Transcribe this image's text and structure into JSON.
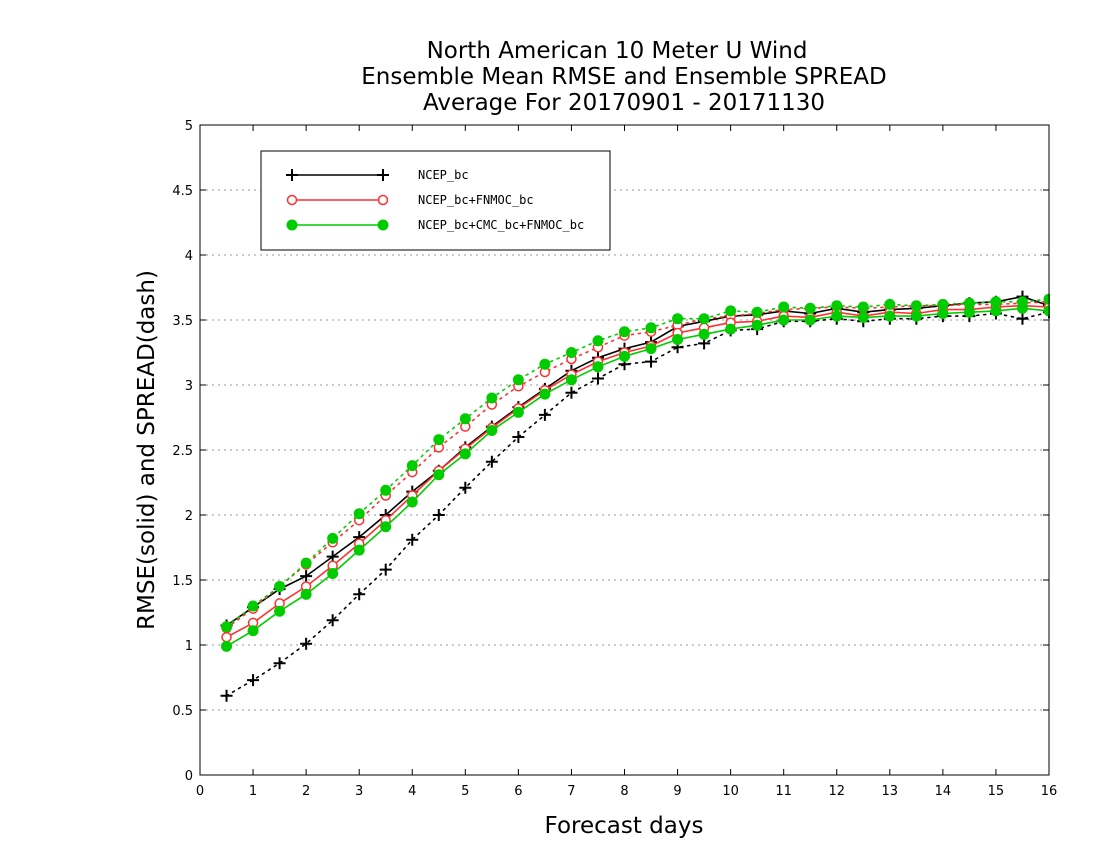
{
  "chart_data": {
    "type": "line",
    "title_lines": [
      "North American 10 Meter U Wind",
      "Ensemble Mean RMSE and Ensemble SPREAD",
      "Average For 20170901 - 20171130"
    ],
    "xlabel": "Forecast days",
    "ylabel": "RMSE(solid) and SPREAD(dash)",
    "xlim": [
      0,
      16
    ],
    "ylim": [
      0,
      5
    ],
    "xticks": [
      "0",
      "1",
      "2",
      "3",
      "4",
      "5",
      "6",
      "7",
      "8",
      "9",
      "10",
      "11",
      "12",
      "13",
      "14",
      "15",
      "16"
    ],
    "yticks": [
      "0",
      "0.5",
      "1",
      "1.5",
      "2",
      "2.5",
      "3",
      "3.5",
      "4",
      "4.5",
      "5"
    ],
    "grid": true,
    "legend_position": "top-left",
    "x": [
      0.5,
      1,
      1.5,
      2,
      2.5,
      3,
      3.5,
      4,
      4.5,
      5,
      5.5,
      6,
      6.5,
      7,
      7.5,
      8,
      8.5,
      9,
      9.5,
      10,
      10.5,
      11,
      11.5,
      12,
      12.5,
      13,
      13.5,
      14,
      14.5,
      15,
      15.5,
      16
    ],
    "series": [
      {
        "name": "NCEP_bc",
        "color": "#000000",
        "marker": "plus",
        "rmse": [
          1.15,
          1.29,
          1.43,
          1.53,
          1.68,
          1.83,
          2.0,
          2.18,
          2.34,
          2.52,
          2.68,
          2.83,
          2.97,
          3.11,
          3.21,
          3.28,
          3.33,
          3.45,
          3.49,
          3.53,
          3.54,
          3.57,
          3.55,
          3.59,
          3.56,
          3.58,
          3.59,
          3.61,
          3.63,
          3.64,
          3.68,
          3.61
        ],
        "spread": [
          0.61,
          0.73,
          0.86,
          1.01,
          1.19,
          1.39,
          1.58,
          1.81,
          2.0,
          2.21,
          2.41,
          2.6,
          2.77,
          2.94,
          3.05,
          3.16,
          3.18,
          3.29,
          3.32,
          3.42,
          3.43,
          3.49,
          3.49,
          3.51,
          3.49,
          3.51,
          3.51,
          3.53,
          3.53,
          3.55,
          3.51,
          3.56
        ]
      },
      {
        "name": "NCEP_bc+FNMOC_bc",
        "color": "#ff3030",
        "marker": "open-circle",
        "rmse": [
          1.06,
          1.17,
          1.32,
          1.45,
          1.61,
          1.78,
          1.96,
          2.15,
          2.34,
          2.51,
          2.67,
          2.82,
          2.96,
          3.08,
          3.18,
          3.25,
          3.3,
          3.4,
          3.44,
          3.48,
          3.49,
          3.53,
          3.52,
          3.56,
          3.53,
          3.56,
          3.55,
          3.58,
          3.58,
          3.6,
          3.61,
          3.6
        ],
        "spread": [
          1.13,
          1.28,
          1.45,
          1.62,
          1.79,
          1.96,
          2.15,
          2.33,
          2.52,
          2.68,
          2.85,
          2.99,
          3.1,
          3.2,
          3.29,
          3.38,
          3.41,
          3.46,
          3.51,
          3.53,
          3.55,
          3.58,
          3.59,
          3.6,
          3.59,
          3.6,
          3.61,
          3.61,
          3.62,
          3.62,
          3.63,
          3.64
        ]
      },
      {
        "name": "NCEP_bc+CMC_bc+FNMOC_bc",
        "color": "#00cc00",
        "marker": "filled-circle",
        "rmse": [
          0.99,
          1.11,
          1.26,
          1.39,
          1.55,
          1.73,
          1.91,
          2.1,
          2.31,
          2.47,
          2.65,
          2.79,
          2.93,
          3.04,
          3.14,
          3.22,
          3.28,
          3.35,
          3.39,
          3.43,
          3.46,
          3.5,
          3.5,
          3.53,
          3.52,
          3.53,
          3.53,
          3.55,
          3.56,
          3.57,
          3.59,
          3.57
        ],
        "spread": [
          1.14,
          1.3,
          1.45,
          1.63,
          1.82,
          2.01,
          2.19,
          2.38,
          2.58,
          2.74,
          2.9,
          3.04,
          3.16,
          3.25,
          3.34,
          3.41,
          3.44,
          3.51,
          3.51,
          3.57,
          3.56,
          3.6,
          3.59,
          3.61,
          3.6,
          3.62,
          3.61,
          3.62,
          3.63,
          3.64,
          3.64,
          3.66
        ]
      }
    ]
  }
}
